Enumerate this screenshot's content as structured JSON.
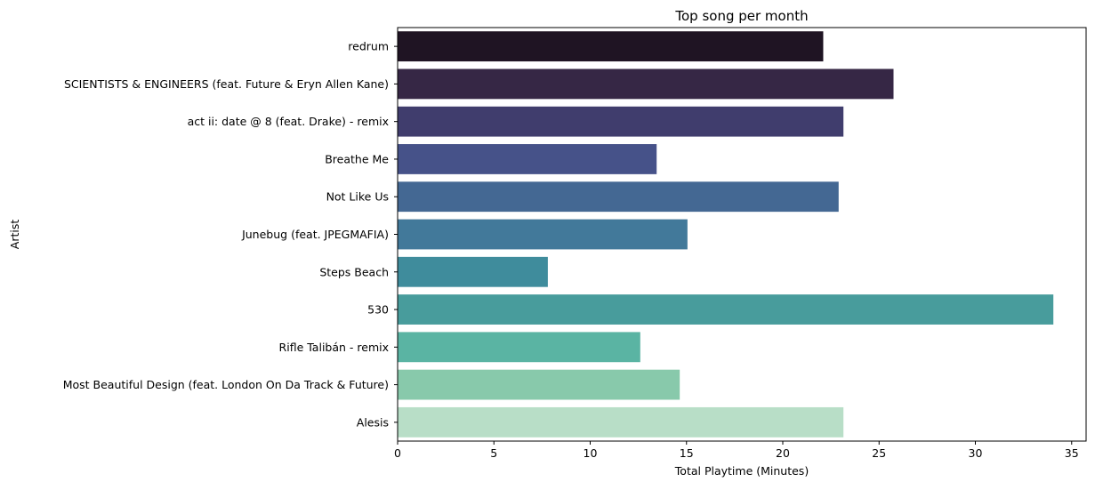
{
  "chart_data": {
    "type": "bar",
    "orientation": "horizontal",
    "title": "Top song per month",
    "xlabel": "Total Playtime (Minutes)",
    "ylabel": "Artist",
    "categories": [
      "redrum",
      "SCIENTISTS & ENGINEERS (feat. Future & Eryn Allen Kane)",
      "act ii: date @ 8 (feat. Drake) - remix",
      "Breathe Me",
      "Not Like Us",
      "Junebug (feat. JPEGMAFIA)",
      "Steps Beach",
      "530",
      "Rifle Talibán - remix",
      "Most Beautiful Design (feat. London On Da Track & Future)",
      "Alesis"
    ],
    "values": [
      22.1,
      25.75,
      23.15,
      13.45,
      22.9,
      15.05,
      7.8,
      34.05,
      12.6,
      14.65,
      23.15
    ],
    "colors": [
      "#1f1423",
      "#362745",
      "#403d6d",
      "#465289",
      "#446893",
      "#42799a",
      "#3f8c9c",
      "#489c9c",
      "#5ab4a3",
      "#88c9ab",
      "#b8dec7"
    ],
    "xlim": [
      0,
      35.75
    ],
    "xticks": [
      0,
      5,
      10,
      15,
      20,
      25,
      30,
      35
    ],
    "grid": false,
    "legend": "none"
  }
}
